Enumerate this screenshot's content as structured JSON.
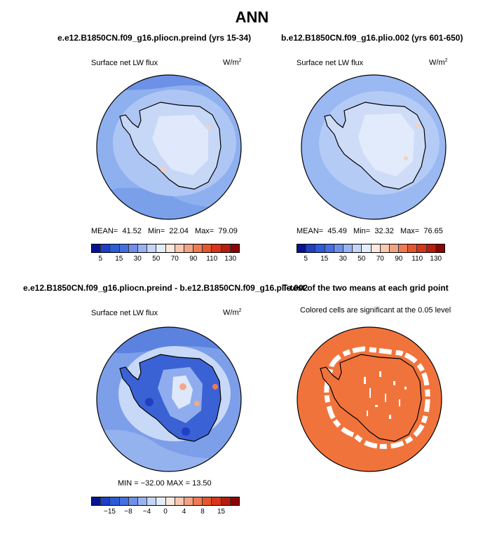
{
  "figure": {
    "title": "ANN"
  },
  "colors": {
    "blue_scale": [
      "#051494",
      "#1f3fc4",
      "#2e5bd8",
      "#466fe2",
      "#6f8fea",
      "#99b3f0",
      "#c4d5f8",
      "#e3ecfb"
    ],
    "red_scale": [
      "#fde9dc",
      "#f9c8b2",
      "#f3a283",
      "#ee7b54",
      "#e7562d",
      "#d8351b",
      "#b51d0f",
      "#8b0505"
    ],
    "ocean_mean": "#8fb0ef",
    "ocean_diff": "#7d9ee9",
    "significance": "#f1733c",
    "land_outline": "#000000"
  },
  "chart_data": [
    {
      "type": "heatmap",
      "title": "e.e12.B1850CN.f09_g16.pliocn.preind (yrs 15-34)",
      "variable": "Surface net LW flux",
      "units_base": "W/m",
      "units_exp": "2",
      "projection": "south polar stereographic",
      "stats": {
        "mean_label": "MEAN=",
        "mean": "41.52",
        "min_label": "Min=",
        "min": "22.04",
        "max_label": "Max=",
        "max": "79.09"
      },
      "colorbar": {
        "labels": [
          "5",
          "15",
          "30",
          "50",
          "70",
          "90",
          "110",
          "130"
        ],
        "n_colors": 16
      }
    },
    {
      "type": "heatmap",
      "title": "b.e12.B1850CN.f09_g16.plio.002 (yrs 601-650)",
      "variable": "Surface net LW flux",
      "units_base": "W/m",
      "units_exp": "2",
      "projection": "south polar stereographic",
      "stats": {
        "mean_label": "MEAN=",
        "mean": "45.49",
        "min_label": "Min=",
        "min": "32.32",
        "max_label": "Max=",
        "max": "76.65"
      },
      "colorbar": {
        "labels": [
          "5",
          "15",
          "30",
          "50",
          "70",
          "90",
          "110",
          "130"
        ],
        "n_colors": 16
      }
    },
    {
      "type": "heatmap",
      "title": "e.e12.B1850CN.f09_g16.pliocn.preind - b.e12.B1850CN.f09_g16.plio.002",
      "variable": "Surface net LW flux",
      "units_base": "W/m",
      "units_exp": "2",
      "projection": "south polar stereographic",
      "stats": {
        "text": "MIN = −32.00  MAX = 13.50",
        "min": -32.0,
        "max": 13.5
      },
      "colorbar": {
        "labels": [
          "−15",
          "−8",
          "−4",
          "0",
          "4",
          "8",
          "15"
        ],
        "n_colors": 16
      }
    },
    {
      "type": "heatmap",
      "title": "T-test of the two means at each grid point",
      "variable": "Colored cells are significant at the 0.05 level",
      "projection": "south polar stereographic"
    }
  ]
}
